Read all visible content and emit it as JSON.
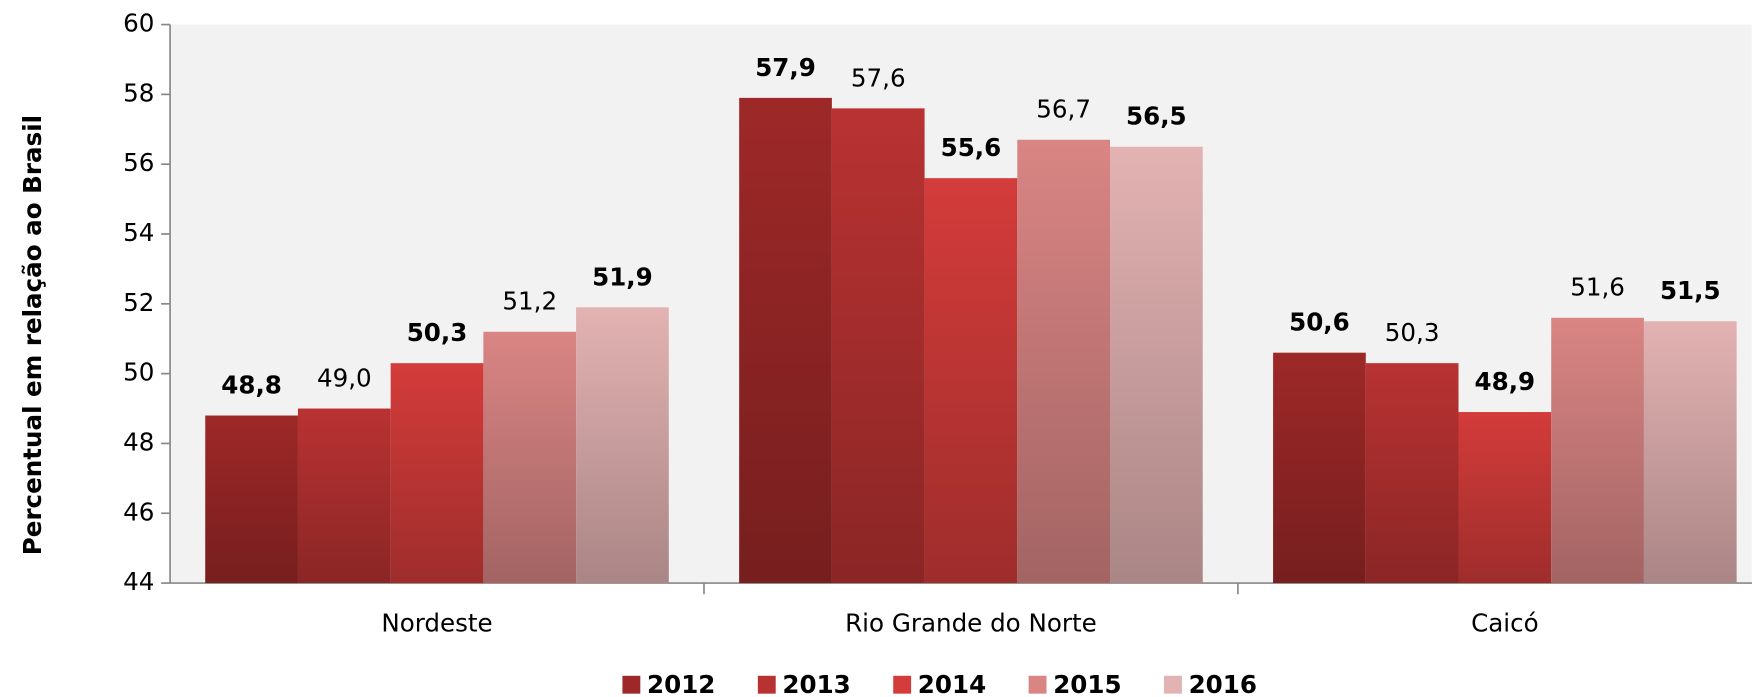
{
  "chart_data": {
    "type": "bar",
    "y_label": "Percentual em relação ao Brasil",
    "categories": [
      "Nordeste",
      "Rio Grande do Norte",
      "Caicó"
    ],
    "series": [
      {
        "name": "2012",
        "color": "#9e2828",
        "values": [
          48.8,
          57.9,
          50.6
        ],
        "value_labels": [
          "48,8",
          "57,9",
          "50,6"
        ]
      },
      {
        "name": "2013",
        "color": "#b93232",
        "values": [
          49.0,
          57.6,
          50.3
        ],
        "value_labels": [
          "49,0",
          "57,6",
          "50,3"
        ]
      },
      {
        "name": "2014",
        "color": "#d33c3a",
        "values": [
          50.3,
          55.6,
          48.9
        ],
        "value_labels": [
          "50,3",
          "55,6",
          "48,9"
        ]
      },
      {
        "name": "2015",
        "color": "#d98584",
        "values": [
          51.2,
          56.7,
          51.6
        ],
        "value_labels": [
          "51,2",
          "56,7",
          "51,6"
        ]
      },
      {
        "name": "2016",
        "color": "#e3b2b2",
        "values": [
          51.9,
          56.5,
          51.5
        ],
        "value_labels": [
          "51,9",
          "56,5",
          "51,5"
        ]
      }
    ],
    "ylim": [
      44,
      60
    ],
    "yticks": [
      44,
      46,
      48,
      50,
      52,
      54,
      56,
      58,
      60
    ]
  }
}
